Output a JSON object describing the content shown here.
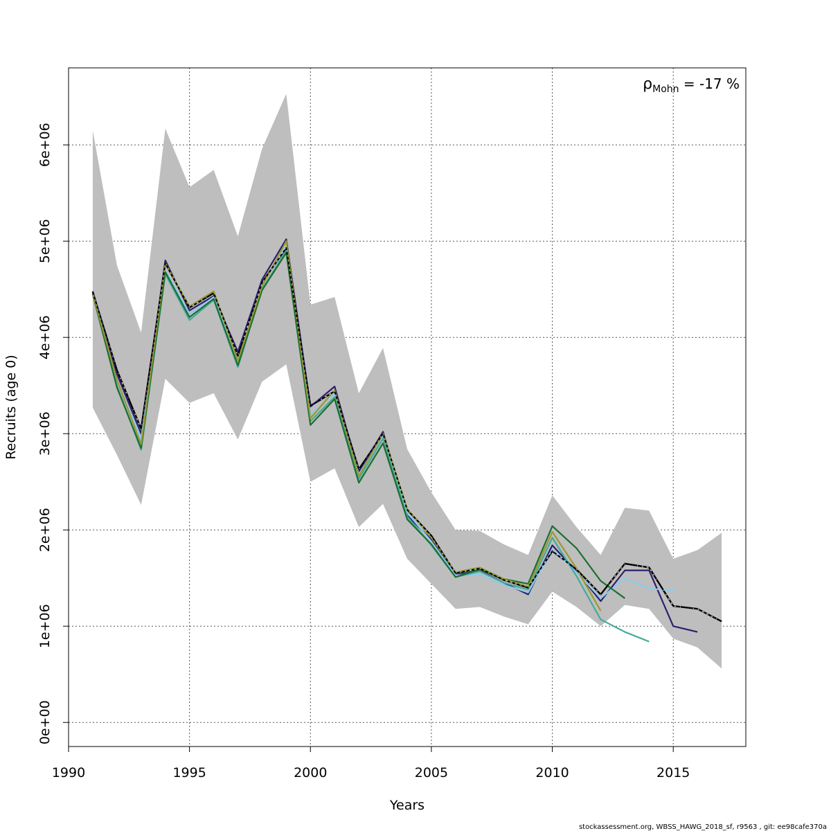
{
  "chart_data": {
    "type": "line",
    "xlabel": "Years",
    "ylabel": "Recruits (age 0)",
    "xlim": [
      1990,
      2018
    ],
    "ylim": [
      -250000,
      6800000
    ],
    "x_ticks": [
      1990,
      1995,
      2000,
      2005,
      2010,
      2015
    ],
    "x_tick_labels": [
      "1990",
      "1995",
      "2000",
      "2005",
      "2010",
      "2015"
    ],
    "y_ticks": [
      0,
      1000000,
      2000000,
      3000000,
      4000000,
      5000000,
      6000000
    ],
    "y_tick_labels": [
      "0e+00",
      "1e+06",
      "2e+06",
      "3e+06",
      "4e+06",
      "5e+06",
      "6e+06"
    ],
    "grid": true,
    "annotation": {
      "rho_symbol": "ρ",
      "rho_subscript": "Mohn",
      "rho_value": " = -17 %"
    },
    "footer": "stockassessment.org, WBSS_HAWG_2018_sf, r9563 , git: ee98cafe370a",
    "colors": {
      "band": "#bebebe",
      "reference": "#000000",
      "grid": "#555555"
    },
    "confidence_band": {
      "x": [
        1991,
        1992,
        1993,
        1994,
        1995,
        1996,
        1997,
        1998,
        1999,
        2000,
        2001,
        2002,
        2003,
        2004,
        2005,
        2006,
        2007,
        2008,
        2009,
        2010,
        2011,
        2012,
        2013,
        2014,
        2015,
        2016,
        2017
      ],
      "upper": [
        6150000,
        4750000,
        4050000,
        6170000,
        5560000,
        5740000,
        5050000,
        5960000,
        6530000,
        4340000,
        4420000,
        3420000,
        3890000,
        2840000,
        2390000,
        2000000,
        1990000,
        1850000,
        1740000,
        2360000,
        2030000,
        1740000,
        2230000,
        2200000,
        1700000,
        1790000,
        1970000
      ],
      "lower": [
        3270000,
        2780000,
        2260000,
        3570000,
        3320000,
        3420000,
        2940000,
        3540000,
        3720000,
        2500000,
        2640000,
        2030000,
        2270000,
        1700000,
        1440000,
        1180000,
        1200000,
        1100000,
        1020000,
        1360000,
        1200000,
        1000000,
        1220000,
        1180000,
        870000,
        780000,
        560000
      ]
    },
    "series": [
      {
        "color": "#000000",
        "dashed": true,
        "width": 2.4,
        "x": [
          1991,
          1992,
          1993,
          1994,
          1995,
          1996,
          1997,
          1998,
          1999,
          2000,
          2001,
          2002,
          2003,
          2004,
          2005,
          2006,
          2007,
          2008,
          2009,
          2010,
          2011,
          2012,
          2013,
          2014,
          2015,
          2016,
          2017
        ],
        "values": [
          4470000,
          3660000,
          3050000,
          4770000,
          4310000,
          4460000,
          3810000,
          4570000,
          4930000,
          3290000,
          3440000,
          2630000,
          3000000,
          2210000,
          1940000,
          1550000,
          1600000,
          1480000,
          1400000,
          1780000,
          1590000,
          1330000,
          1650000,
          1610000,
          1210000,
          1180000,
          1050000
        ]
      },
      {
        "color": "#2d1e6e",
        "dashed": false,
        "width": 2.2,
        "x": [
          1991,
          1992,
          1993,
          1994,
          1995,
          1996,
          1997,
          1998,
          1999,
          2000,
          2001,
          2002,
          2003,
          2004,
          2005,
          2006,
          2007,
          2008,
          2009,
          2010,
          2011,
          2012,
          2013,
          2014,
          2015,
          2016
        ],
        "values": [
          4480000,
          3620000,
          3000000,
          4800000,
          4280000,
          4430000,
          3850000,
          4600000,
          5020000,
          3280000,
          3490000,
          2600000,
          3020000,
          2150000,
          1900000,
          1530000,
          1580000,
          1450000,
          1330000,
          1840000,
          1570000,
          1260000,
          1580000,
          1580000,
          1000000,
          940000
        ]
      },
      {
        "color": "#88ccee",
        "dashed": false,
        "width": 2.0,
        "x": [
          1991,
          1992,
          1993,
          1994,
          1995,
          1996,
          1997,
          1998,
          1999,
          2000,
          2001,
          2002,
          2003,
          2004,
          2005,
          2006,
          2007,
          2008,
          2009,
          2010,
          2011,
          2012,
          2013,
          2014,
          2015
        ],
        "values": [
          4450000,
          3550000,
          2950000,
          4700000,
          4240000,
          4420000,
          3760000,
          4550000,
          4950000,
          3200000,
          3420000,
          2580000,
          2980000,
          2180000,
          1880000,
          1530000,
          1540000,
          1430000,
          1350000,
          1800000,
          1560000,
          1290000,
          1500000,
          1390000,
          1370000
        ]
      },
      {
        "color": "#44aa99",
        "dashed": false,
        "width": 2.2,
        "x": [
          1991,
          1992,
          1993,
          1994,
          1995,
          1996,
          1997,
          1998,
          1999,
          2000,
          2001,
          2002,
          2003,
          2004,
          2005,
          2006,
          2007,
          2008,
          2009,
          2010,
          2011,
          2012,
          2013,
          2014
        ],
        "values": [
          4450000,
          3500000,
          2830000,
          4660000,
          4180000,
          4390000,
          3690000,
          4500000,
          4900000,
          3130000,
          3380000,
          2530000,
          2950000,
          2140000,
          1840000,
          1510000,
          1570000,
          1450000,
          1380000,
          1920000,
          1520000,
          1070000,
          940000,
          840000
        ]
      },
      {
        "color": "#1a6e32",
        "dashed": false,
        "width": 2.2,
        "x": [
          1991,
          1992,
          1993,
          1994,
          1995,
          1996,
          1997,
          1998,
          1999,
          2000,
          2001,
          2002,
          2003,
          2004,
          2005,
          2006,
          2007,
          2008,
          2009,
          2010,
          2011,
          2012,
          2013
        ],
        "values": [
          4450000,
          3480000,
          2850000,
          4680000,
          4210000,
          4400000,
          3710000,
          4490000,
          4880000,
          3090000,
          3360000,
          2490000,
          2900000,
          2110000,
          1850000,
          1510000,
          1590000,
          1490000,
          1440000,
          2040000,
          1810000,
          1470000,
          1290000
        ]
      },
      {
        "color": "#999933",
        "dashed": false,
        "width": 2.2,
        "x": [
          1991,
          1992,
          1993,
          1994,
          1995,
          1996,
          1997,
          1998,
          1999,
          2000,
          2001,
          2002,
          2003,
          2004,
          2005,
          2006,
          2007,
          2008,
          2009,
          2010,
          2011,
          2012
        ],
        "values": [
          4460000,
          3560000,
          2890000,
          4770000,
          4320000,
          4480000,
          3760000,
          4530000,
          5000000,
          3160000,
          3450000,
          2560000,
          3000000,
          2220000,
          1920000,
          1560000,
          1610000,
          1490000,
          1410000,
          1980000,
          1600000,
          1160000
        ]
      }
    ]
  }
}
